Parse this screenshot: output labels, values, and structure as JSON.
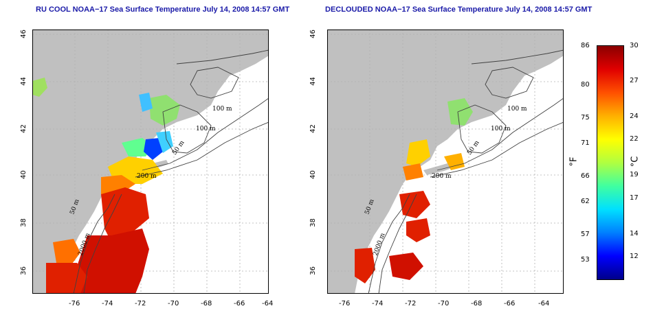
{
  "panels": [
    {
      "title": "RU COOL NOAA−17 Sea Surface Temperature July 14, 2008 14:57 GMT",
      "x_ticks": [
        "-76",
        "-74",
        "-72",
        "-70",
        "-68",
        "-66",
        "-64"
      ],
      "y_ticks": [
        "46",
        "44",
        "42",
        "40",
        "38",
        "36"
      ],
      "contour_labels": [
        "100 m",
        "100 m",
        "50 m",
        "200 m",
        "50 m",
        "2000 m"
      ]
    },
    {
      "title": "DECLOUDED NOAA−17 Sea Surface Temperature July 14, 2008 14:57 GMT",
      "x_ticks": [
        "-76",
        "-74",
        "-72",
        "-70",
        "-68",
        "-66",
        "-64"
      ],
      "y_ticks": [
        "46",
        "44",
        "42",
        "40",
        "38",
        "36"
      ],
      "contour_labels": [
        "100 m",
        "100 m",
        "50 m",
        "200 m",
        "50 m",
        "2000 m"
      ]
    }
  ],
  "colorbar": {
    "f_ticks": [
      "86",
      "80",
      "75",
      "71",
      "66",
      "62",
      "57",
      "53"
    ],
    "c_ticks": [
      "30",
      "27",
      "24",
      "22",
      "19",
      "17",
      "14",
      "12"
    ],
    "f_unit": "°F",
    "c_unit": "°C",
    "range_c": [
      10,
      30
    ],
    "colors": [
      "#00008b",
      "#0000ff",
      "#0080ff",
      "#00e0ff",
      "#40ffa0",
      "#b0ff40",
      "#ffff00",
      "#ffb000",
      "#ff5000",
      "#e00000",
      "#8b0000"
    ]
  },
  "colors": {
    "land": "#c0c0c0",
    "ocean_nodata": "#ffffff",
    "title": "#1a1aa8",
    "contour": "#404040",
    "grid": "#b0b0b0"
  }
}
